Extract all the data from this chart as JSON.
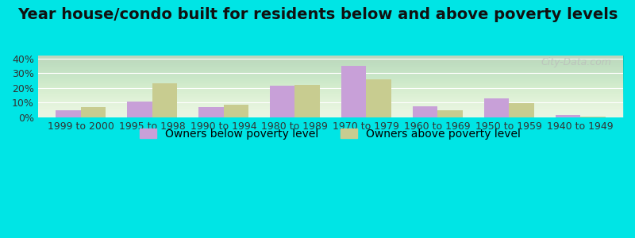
{
  "title": "Year house/condo built for residents below and above poverty levels",
  "categories": [
    "1999 to 2000",
    "1995 to 1998",
    "1990 to 1994",
    "1980 to 1989",
    "1970 to 1979",
    "1960 to 1969",
    "1950 to 1959",
    "1940 to 1949"
  ],
  "below_poverty": [
    5,
    10.5,
    7,
    21.5,
    35,
    7.5,
    13,
    1.5
  ],
  "above_poverty": [
    7,
    23,
    8.5,
    22,
    26,
    5,
    9.5,
    0.5
  ],
  "below_color": "#c8a0d8",
  "above_color": "#c8cc90",
  "background_color": "#e8f5e0",
  "outer_background": "#00e5e5",
  "ylim": [
    0,
    42
  ],
  "yticks": [
    0,
    10,
    20,
    30,
    40
  ],
  "ytick_labels": [
    "0%",
    "10%",
    "20%",
    "30%",
    "40%"
  ],
  "legend_below": "Owners below poverty level",
  "legend_above": "Owners above poverty level",
  "bar_width": 0.35,
  "title_fontsize": 14,
  "tick_fontsize": 9,
  "legend_fontsize": 10,
  "watermark": "City-Data.com"
}
